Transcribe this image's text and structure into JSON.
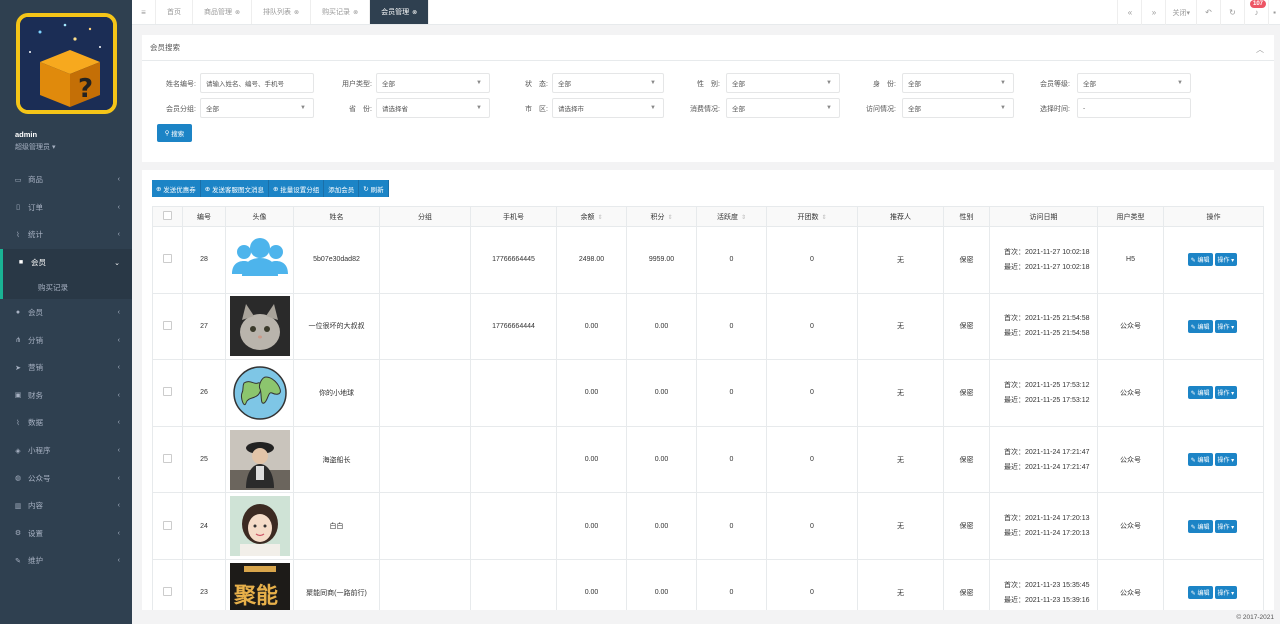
{
  "sidebar": {
    "user_name": "admin",
    "user_role": "超级管理员",
    "items": [
      {
        "label": "商品",
        "icon": "tv-icon"
      },
      {
        "label": "订单",
        "icon": "file-icon"
      },
      {
        "label": "统计",
        "icon": "chart-icon"
      },
      {
        "label": "会员",
        "icon": "square-icon",
        "active": true
      },
      {
        "label": "会员",
        "icon": "user-icon"
      },
      {
        "label": "分销",
        "icon": "sitemap-icon"
      },
      {
        "label": "营销",
        "icon": "send-icon"
      },
      {
        "label": "财务",
        "icon": "money-icon"
      },
      {
        "label": "数据",
        "icon": "line-chart-icon"
      },
      {
        "label": "小程序",
        "icon": "cubes-icon"
      },
      {
        "label": "公众号",
        "icon": "wechat-icon"
      },
      {
        "label": "内容",
        "icon": "book-icon"
      },
      {
        "label": "设置",
        "icon": "gear-icon"
      },
      {
        "label": "维护",
        "icon": "wrench-icon"
      }
    ],
    "submenu_label": "购买记录"
  },
  "topbar": {
    "tabs": [
      {
        "label": "首页",
        "closable": false
      },
      {
        "label": "商品管理",
        "closable": true
      },
      {
        "label": "排队列表",
        "closable": true
      },
      {
        "label": "购买记录",
        "closable": true
      },
      {
        "label": "会员管理",
        "closable": true,
        "active": true
      }
    ],
    "close_label": "关闭",
    "badge": "107"
  },
  "search": {
    "title": "会员搜索",
    "row1": [
      {
        "label": "姓名编号:",
        "value": "请输入姓名、编号、手机号",
        "select": false
      },
      {
        "label": "用户类型:",
        "value": "全部",
        "select": true
      },
      {
        "label": "状　态:",
        "value": "全部",
        "select": true
      },
      {
        "label": "性　别:",
        "value": "全部",
        "select": true
      },
      {
        "label": "身　份:",
        "value": "全部",
        "select": true
      },
      {
        "label": "会员等级:",
        "value": "全部",
        "select": true
      }
    ],
    "row2": [
      {
        "label": "会员分组:",
        "value": "全部",
        "select": true
      },
      {
        "label": "省　份:",
        "value": "请选择省",
        "select": true
      },
      {
        "label": "市　区:",
        "value": "请选择市",
        "select": true
      },
      {
        "label": "消费情况:",
        "value": "全部",
        "select": true
      },
      {
        "label": "访问情况:",
        "value": "全部",
        "select": true
      },
      {
        "label": "选择时间:",
        "value": "-",
        "select": false
      }
    ],
    "button_label": "搜索"
  },
  "toolbar": {
    "buttons": [
      "发送优惠券",
      "发送客服图文消息",
      "批量设置分组",
      "添加会员",
      "刷新"
    ]
  },
  "table": {
    "headers": [
      "",
      "编号",
      "头像",
      "姓名",
      "分组",
      "手机号",
      "余额",
      "积分",
      "活跃度",
      "开团数",
      "推荐人",
      "性别",
      "访问日期",
      "用户类型",
      "操作"
    ],
    "rows": [
      {
        "id": "28",
        "avatar": "default-avatar",
        "name": "5b07e30dad82",
        "group": "",
        "phone": "17766664445",
        "balance": "2498.00",
        "points": "9959.00",
        "activity": "0",
        "groups": "0",
        "referrer": "无",
        "gender": "保密",
        "first": "首次：2021-11-27 10:02:18",
        "last": "最近：2021-11-27 10:02:18",
        "type": "H5"
      },
      {
        "id": "27",
        "avatar": "cat-avatar",
        "name": "一位很坏的大叔叔",
        "group": "",
        "phone": "17766664444",
        "balance": "0.00",
        "points": "0.00",
        "activity": "0",
        "groups": "0",
        "referrer": "无",
        "gender": "保密",
        "first": "首次：2021-11-25 21:54:58",
        "last": "最近：2021-11-25 21:54:58",
        "type": "公众号"
      },
      {
        "id": "26",
        "avatar": "globe-avatar",
        "name": "你的小地球",
        "group": "",
        "phone": "",
        "balance": "0.00",
        "points": "0.00",
        "activity": "0",
        "groups": "0",
        "referrer": "无",
        "gender": "保密",
        "first": "首次：2021-11-25 17:53:12",
        "last": "最近：2021-11-25 17:53:12",
        "type": "公众号"
      },
      {
        "id": "25",
        "avatar": "pirate-avatar",
        "name": "海盗船长",
        "group": "",
        "phone": "",
        "balance": "0.00",
        "points": "0.00",
        "activity": "0",
        "groups": "0",
        "referrer": "无",
        "gender": "保密",
        "first": "首次：2021-11-24 17:21:47",
        "last": "最近：2021-11-24 17:21:47",
        "type": "公众号"
      },
      {
        "id": "24",
        "avatar": "girl-avatar",
        "name": "白白",
        "group": "",
        "phone": "",
        "balance": "0.00",
        "points": "0.00",
        "activity": "0",
        "groups": "0",
        "referrer": "无",
        "gender": "保密",
        "first": "首次：2021-11-24 17:20:13",
        "last": "最近：2021-11-24 17:20:13",
        "type": "公众号"
      },
      {
        "id": "23",
        "avatar": "poster-avatar",
        "name": "聚能同商(一路前行)",
        "group": "",
        "phone": "",
        "balance": "0.00",
        "points": "0.00",
        "activity": "0",
        "groups": "0",
        "referrer": "无",
        "gender": "保密",
        "first": "首次：2021-11-23 15:35:45",
        "last": "最近：2021-11-23 15:39:16",
        "type": "公众号"
      }
    ],
    "edit_label": "编辑",
    "ops_label": "操作"
  },
  "footer": "© 2017-2021",
  "colors": {
    "sidebar": "#2f4050",
    "primary": "#1c84c6",
    "accent": "#1ab394"
  }
}
